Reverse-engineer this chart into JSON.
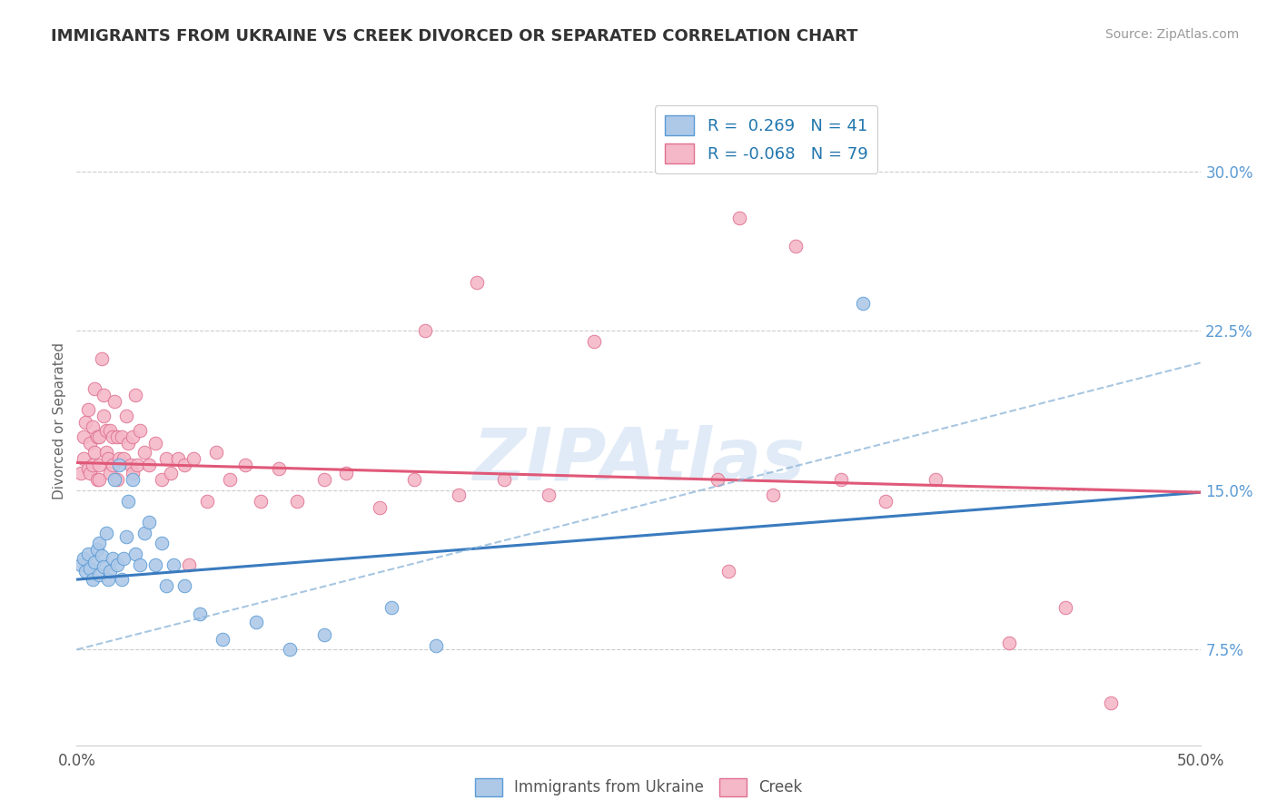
{
  "title": "IMMIGRANTS FROM UKRAINE VS CREEK DIVORCED OR SEPARATED CORRELATION CHART",
  "source_text": "Source: ZipAtlas.com",
  "ylabel": "Divorced or Separated",
  "yticks": [
    0.075,
    0.15,
    0.225,
    0.3
  ],
  "ytick_labels": [
    "7.5%",
    "15.0%",
    "22.5%",
    "30.0%"
  ],
  "xmin": 0.0,
  "xmax": 0.5,
  "ymin": 0.03,
  "ymax": 0.335,
  "legend_R_blue": "R =  0.269",
  "legend_N_blue": "N = 41",
  "legend_R_pink": "R = -0.068",
  "legend_N_pink": "N = 79",
  "watermark": "ZIPAtlas",
  "blue_fill": "#aec9e8",
  "blue_edge": "#5b9bd5",
  "pink_fill": "#f4b8c8",
  "pink_edge": "#e07090",
  "blue_line": "#3a7bbf",
  "pink_line": "#e05878",
  "dash_line": "#8ab4d8",
  "blue_x": [
    0.002,
    0.003,
    0.004,
    0.005,
    0.006,
    0.007,
    0.008,
    0.009,
    0.01,
    0.01,
    0.011,
    0.012,
    0.013,
    0.014,
    0.015,
    0.016,
    0.017,
    0.018,
    0.019,
    0.02,
    0.021,
    0.022,
    0.023,
    0.025,
    0.026,
    0.028,
    0.03,
    0.032,
    0.035,
    0.038,
    0.04,
    0.043,
    0.048,
    0.055,
    0.065,
    0.08,
    0.095,
    0.11,
    0.14,
    0.16,
    0.35
  ],
  "blue_y": [
    0.115,
    0.118,
    0.112,
    0.12,
    0.113,
    0.108,
    0.116,
    0.122,
    0.11,
    0.125,
    0.119,
    0.114,
    0.13,
    0.108,
    0.112,
    0.118,
    0.155,
    0.115,
    0.162,
    0.108,
    0.118,
    0.128,
    0.145,
    0.155,
    0.12,
    0.115,
    0.13,
    0.135,
    0.115,
    0.125,
    0.105,
    0.115,
    0.105,
    0.092,
    0.08,
    0.088,
    0.075,
    0.082,
    0.095,
    0.077,
    0.238
  ],
  "pink_x": [
    0.002,
    0.003,
    0.003,
    0.004,
    0.005,
    0.005,
    0.006,
    0.006,
    0.007,
    0.007,
    0.008,
    0.008,
    0.009,
    0.009,
    0.01,
    0.01,
    0.01,
    0.011,
    0.012,
    0.012,
    0.013,
    0.013,
    0.014,
    0.015,
    0.015,
    0.016,
    0.016,
    0.017,
    0.018,
    0.018,
    0.019,
    0.02,
    0.021,
    0.022,
    0.023,
    0.024,
    0.025,
    0.025,
    0.026,
    0.027,
    0.028,
    0.03,
    0.032,
    0.035,
    0.038,
    0.04,
    0.042,
    0.045,
    0.048,
    0.052,
    0.058,
    0.062,
    0.068,
    0.075,
    0.082,
    0.09,
    0.098,
    0.11,
    0.12,
    0.135,
    0.15,
    0.17,
    0.19,
    0.21,
    0.23,
    0.155,
    0.178,
    0.285,
    0.31,
    0.34,
    0.36,
    0.382,
    0.295,
    0.32,
    0.415,
    0.44,
    0.46,
    0.05,
    0.29
  ],
  "pink_y": [
    0.158,
    0.165,
    0.175,
    0.182,
    0.188,
    0.16,
    0.172,
    0.158,
    0.18,
    0.162,
    0.168,
    0.198,
    0.155,
    0.175,
    0.162,
    0.175,
    0.155,
    0.212,
    0.185,
    0.195,
    0.168,
    0.178,
    0.165,
    0.178,
    0.158,
    0.175,
    0.162,
    0.192,
    0.155,
    0.175,
    0.165,
    0.175,
    0.165,
    0.185,
    0.172,
    0.162,
    0.175,
    0.158,
    0.195,
    0.162,
    0.178,
    0.168,
    0.162,
    0.172,
    0.155,
    0.165,
    0.158,
    0.165,
    0.162,
    0.165,
    0.145,
    0.168,
    0.155,
    0.162,
    0.145,
    0.16,
    0.145,
    0.155,
    0.158,
    0.142,
    0.155,
    0.148,
    0.155,
    0.148,
    0.22,
    0.225,
    0.248,
    0.155,
    0.148,
    0.155,
    0.145,
    0.155,
    0.278,
    0.265,
    0.078,
    0.095,
    0.05,
    0.115,
    0.112
  ]
}
